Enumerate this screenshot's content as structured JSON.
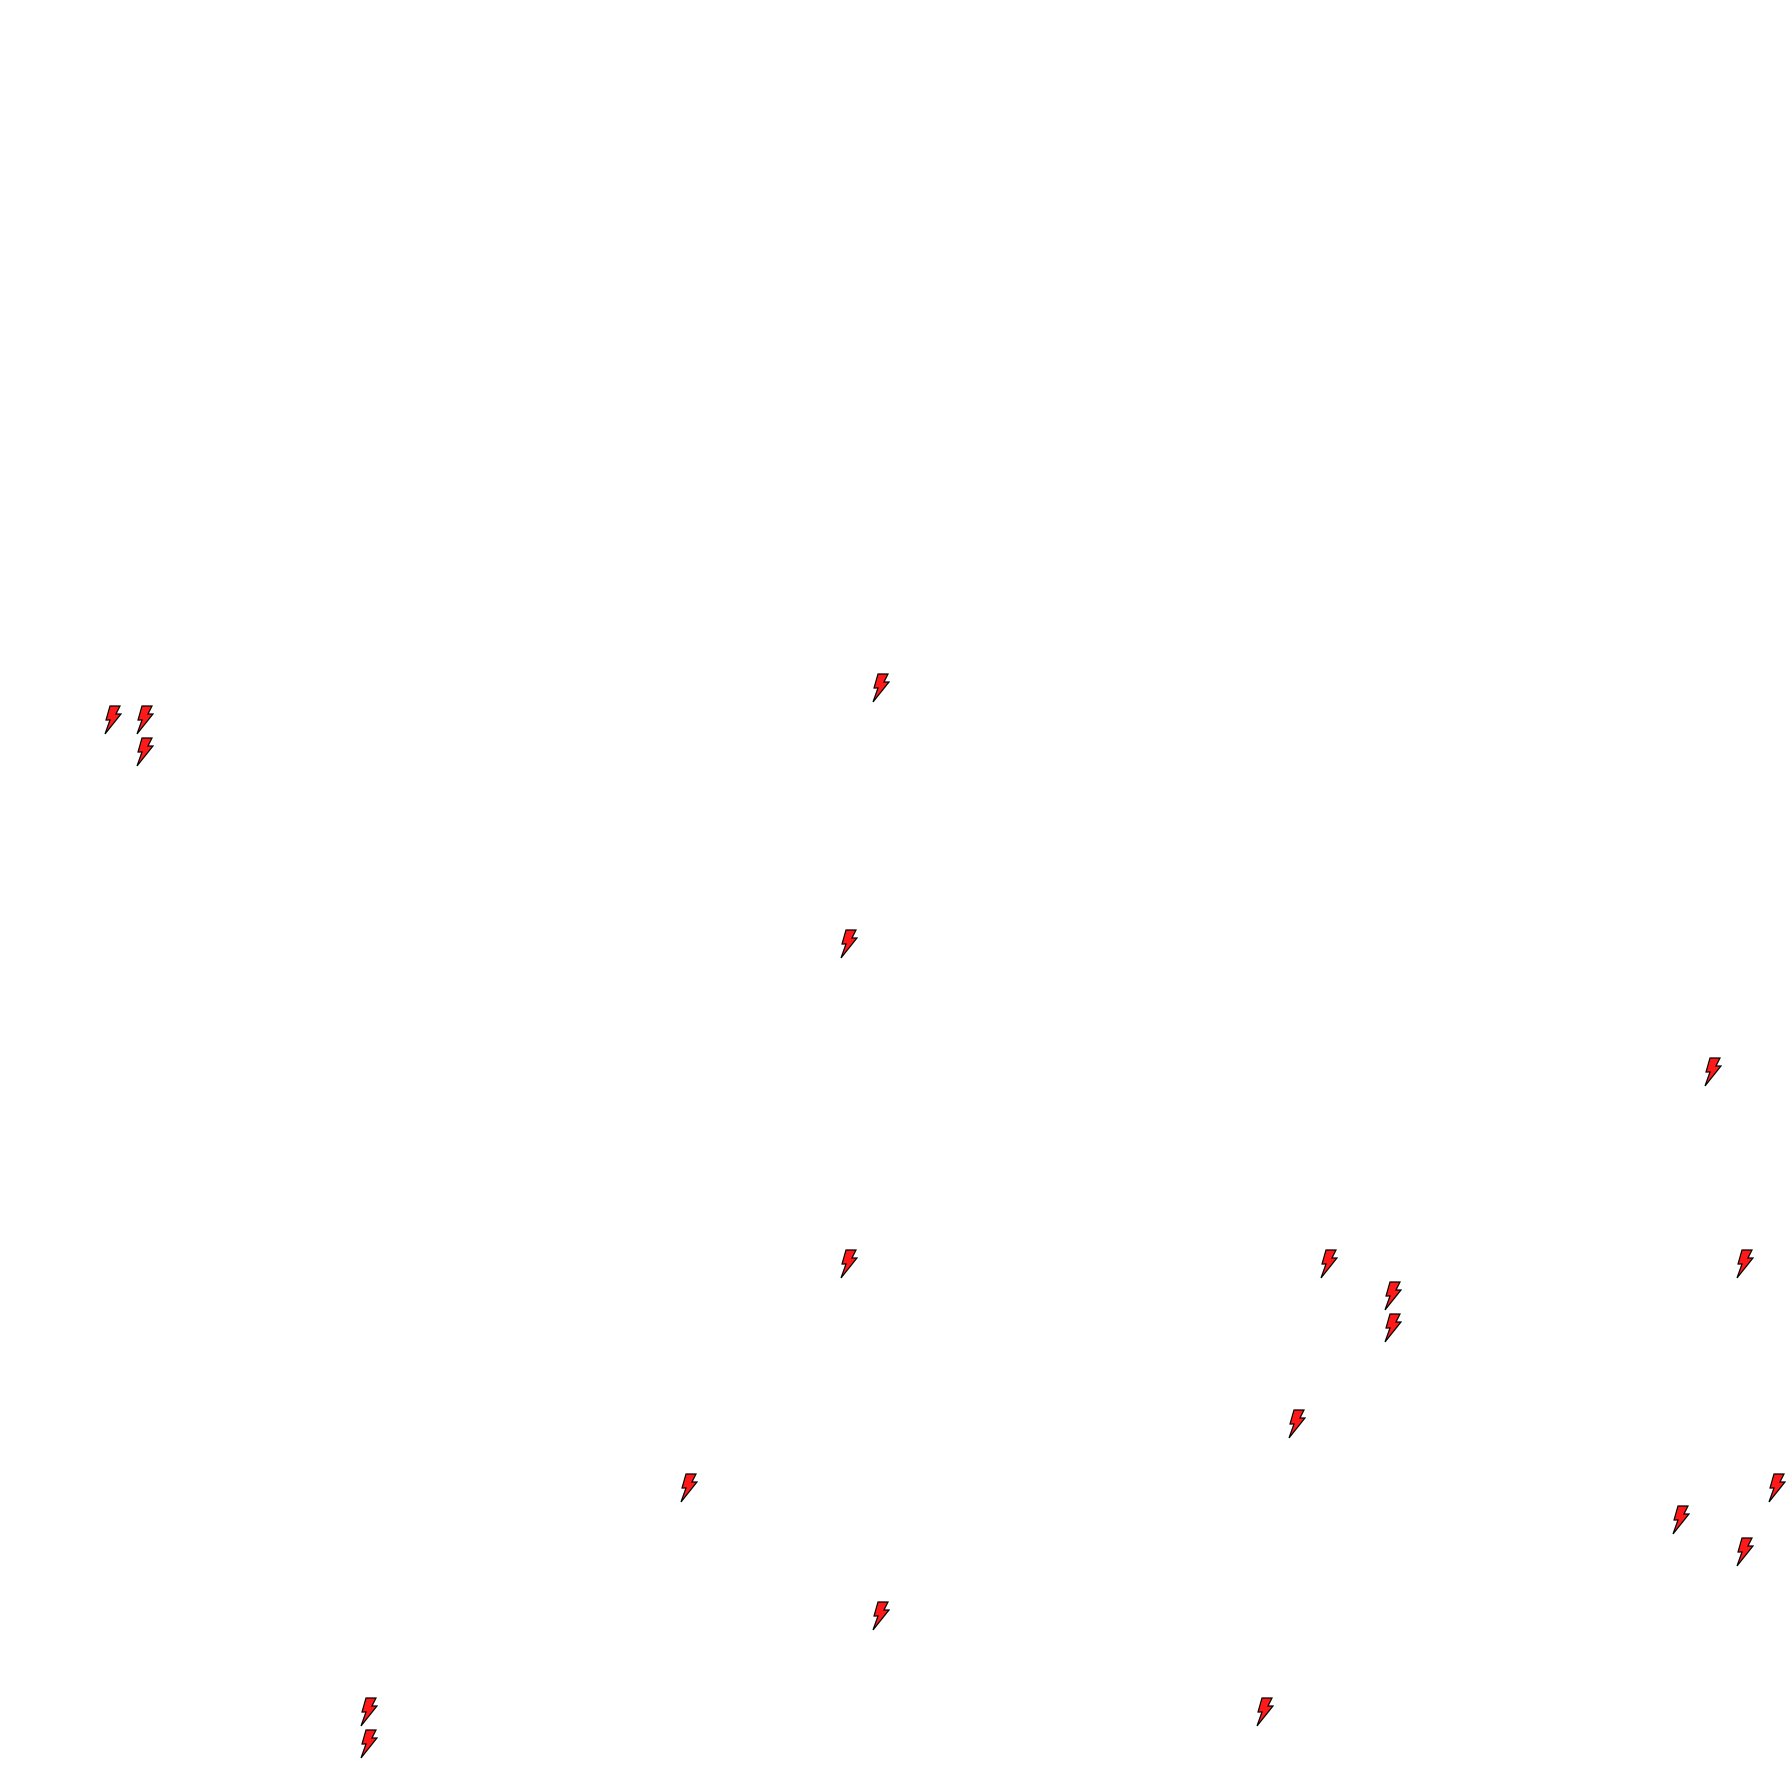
{
  "board": {
    "icon": "lightning-bolt-icon",
    "icon_fill": "#ff1a1a",
    "icon_stroke": "#000000"
  }
}
